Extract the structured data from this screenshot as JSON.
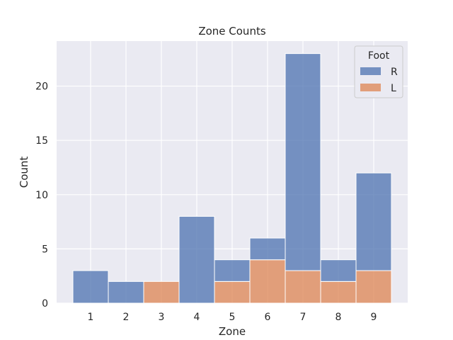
{
  "chart_data": {
    "type": "bar",
    "stacked": true,
    "title": "Zone Counts",
    "xlabel": "Zone",
    "ylabel": "Count",
    "categories": [
      "1",
      "2",
      "3",
      "4",
      "5",
      "6",
      "7",
      "8",
      "9"
    ],
    "series": [
      {
        "name": "L",
        "values": [
          0,
          0,
          2,
          0,
          2,
          4,
          3,
          2,
          3
        ],
        "color": "#dd8452"
      },
      {
        "name": "R",
        "values": [
          3,
          2,
          0,
          8,
          2,
          2,
          20,
          2,
          9
        ],
        "color": "#4c72b0"
      }
    ],
    "ylim": [
      0,
      24.15
    ],
    "yticks": [
      0,
      5,
      10,
      15,
      20
    ],
    "grid": true,
    "legend": {
      "title": "Foot",
      "position": "top-right",
      "order": [
        "R",
        "L"
      ]
    },
    "background": "#eaeaf2"
  }
}
